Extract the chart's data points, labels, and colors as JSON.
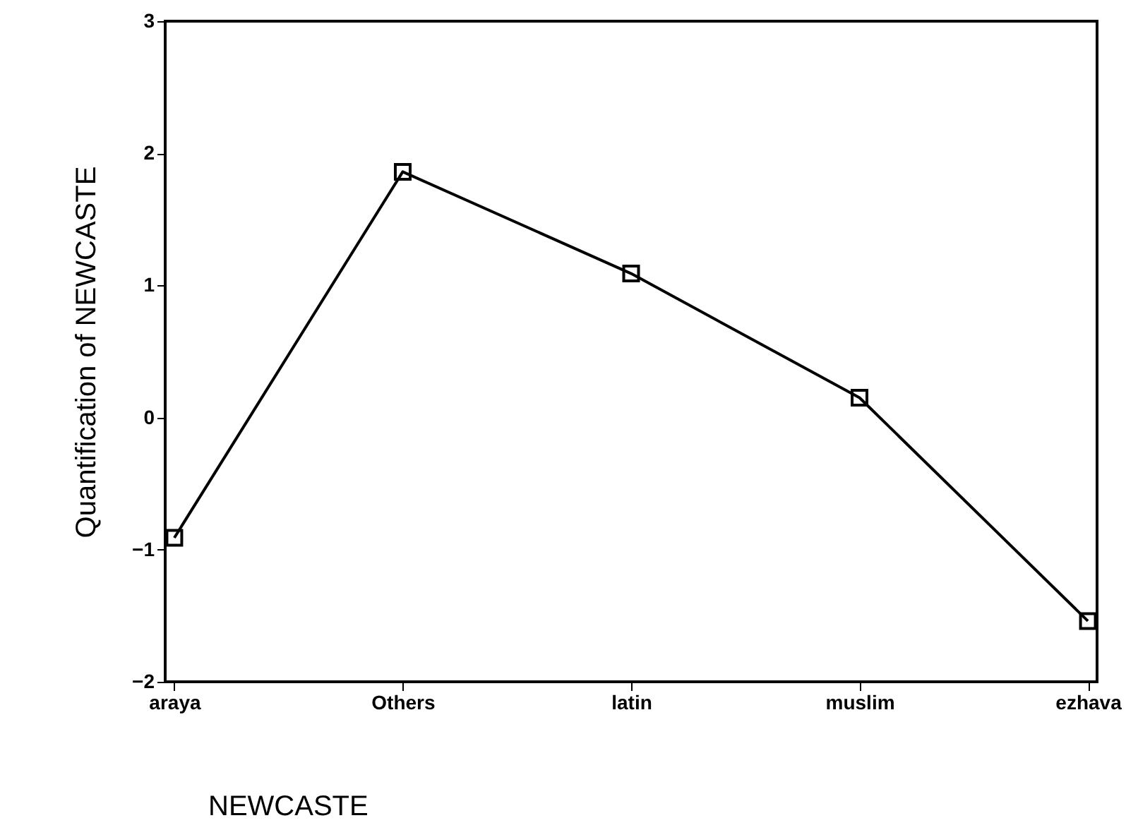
{
  "chart_data": {
    "type": "line",
    "xlabel": "NEWCASTE",
    "ylabel": "Quantification of NEWCASTE",
    "categories": [
      "araya",
      "Others",
      "latin",
      "muslim",
      "ezhava"
    ],
    "series": [
      {
        "color": "#000000",
        "values": [
          -0.91,
          1.86,
          1.09,
          0.15,
          -1.54
        ]
      }
    ],
    "ylim": [
      -2,
      3
    ],
    "yticks": [
      -2,
      -1,
      0,
      1,
      2,
      3
    ],
    "grid": false,
    "marker": "square",
    "line_style": "solid"
  }
}
